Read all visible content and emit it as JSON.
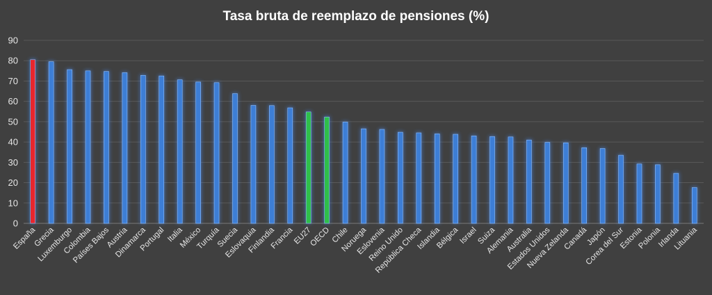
{
  "chart_data": {
    "type": "bar",
    "title": "Tasa bruta de reemplazo de pensiones (%)",
    "xlabel": "",
    "ylabel": "",
    "ylim": [
      0,
      90
    ],
    "yticks": [
      0,
      10,
      20,
      30,
      40,
      50,
      60,
      70,
      80,
      90
    ],
    "grid": true,
    "legend": "none",
    "colors": {
      "default": "#3d7ed6",
      "highlight_spain": "#e8262d",
      "highlight_aggregates": "#2fbf4a",
      "glow": "#4a90ff"
    },
    "categories": [
      "España",
      "Grecia",
      "Luxemburgo",
      "Colombia",
      "Países Bajos",
      "Austria",
      "Dinamarca",
      "Portugal",
      "Italia",
      "México",
      "Turquía",
      "Suecia",
      "Eslovaquia",
      "Finlandia",
      "Francia",
      "EU27",
      "OECD",
      "Chile",
      "Noruega",
      "Eslovenia",
      "Reino Unido",
      "República Checa",
      "Islandia",
      "Bélgica",
      "Israel",
      "Suiza",
      "Alemania",
      "Australia",
      "Estados Unidos",
      "Nueva Zelanda",
      "Canadá",
      "Japón",
      "Corea del Sur",
      "Estonia",
      "Polonia",
      "Irlanda",
      "Lituania"
    ],
    "values": [
      80.5,
      79.5,
      75.6,
      75.0,
      74.7,
      74.1,
      72.8,
      72.5,
      70.6,
      69.5,
      69.2,
      63.8,
      58.0,
      57.9,
      56.8,
      54.8,
      52.3,
      49.8,
      46.5,
      46.2,
      44.8,
      44.5,
      44.0,
      43.8,
      43.0,
      42.7,
      42.5,
      41.0,
      39.8,
      39.6,
      37.2,
      36.8,
      33.5,
      29.2,
      28.8,
      24.6,
      17.6
    ],
    "highlight": {
      "España": "highlight_spain",
      "EU27": "highlight_aggregates",
      "OECD": "highlight_aggregates"
    }
  }
}
